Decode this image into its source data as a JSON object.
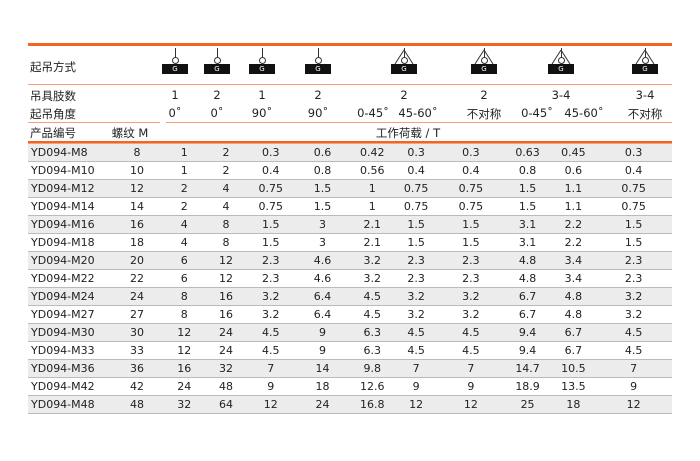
{
  "header": {
    "method_label": "起吊方式",
    "legs_label": "吊具肢数",
    "angle_label": "起吊角度",
    "product_label": "产品编号",
    "thread_label": "螺纹 M",
    "load_label": "工作荷载 / T",
    "icon_letter": "G",
    "legs": [
      "1",
      "2",
      "1",
      "2",
      "2",
      "2",
      "3-4",
      "3-4"
    ],
    "angles": [
      "0˚",
      "0˚",
      "90˚",
      "90˚",
      "0-45˚",
      "45-60˚",
      "不对称",
      "0-45˚",
      "45-60˚",
      "不对称"
    ]
  },
  "accent_color": "#f26522",
  "rows": [
    [
      "YD094-M8",
      "8",
      "1",
      "2",
      "0.3",
      "0.6",
      "0.42",
      "0.3",
      "0.3",
      "0.63",
      "0.45",
      "0.3"
    ],
    [
      "YD094-M10",
      "10",
      "1",
      "2",
      "0.4",
      "0.8",
      "0.56",
      "0.4",
      "0.4",
      "0.8",
      "0.6",
      "0.4"
    ],
    [
      "YD094-M12",
      "12",
      "2",
      "4",
      "0.75",
      "1.5",
      "1",
      "0.75",
      "0.75",
      "1.5",
      "1.1",
      "0.75"
    ],
    [
      "YD094-M14",
      "14",
      "2",
      "4",
      "0.75",
      "1.5",
      "1",
      "0.75",
      "0.75",
      "1.5",
      "1.1",
      "0.75"
    ],
    [
      "YD094-M16",
      "16",
      "4",
      "8",
      "1.5",
      "3",
      "2.1",
      "1.5",
      "1.5",
      "3.1",
      "2.2",
      "1.5"
    ],
    [
      "YD094-M18",
      "18",
      "4",
      "8",
      "1.5",
      "3",
      "2.1",
      "1.5",
      "1.5",
      "3.1",
      "2.2",
      "1.5"
    ],
    [
      "YD094-M20",
      "20",
      "6",
      "12",
      "2.3",
      "4.6",
      "3.2",
      "2.3",
      "2.3",
      "4.8",
      "3.4",
      "2.3"
    ],
    [
      "YD094-M22",
      "22",
      "6",
      "12",
      "2.3",
      "4.6",
      "3.2",
      "2.3",
      "2.3",
      "4.8",
      "3.4",
      "2.3"
    ],
    [
      "YD094-M24",
      "24",
      "8",
      "16",
      "3.2",
      "6.4",
      "4.5",
      "3.2",
      "3.2",
      "6.7",
      "4.8",
      "3.2"
    ],
    [
      "YD094-M27",
      "27",
      "8",
      "16",
      "3.2",
      "6.4",
      "4.5",
      "3.2",
      "3.2",
      "6.7",
      "4.8",
      "3.2"
    ],
    [
      "YD094-M30",
      "30",
      "12",
      "24",
      "4.5",
      "9",
      "6.3",
      "4.5",
      "4.5",
      "9.4",
      "6.7",
      "4.5"
    ],
    [
      "YD094-M33",
      "33",
      "12",
      "24",
      "4.5",
      "9",
      "6.3",
      "4.5",
      "4.5",
      "9.4",
      "6.7",
      "4.5"
    ],
    [
      "YD094-M36",
      "36",
      "16",
      "32",
      "7",
      "14",
      "9.8",
      "7",
      "7",
      "14.7",
      "10.5",
      "7"
    ],
    [
      "YD094-M42",
      "42",
      "24",
      "48",
      "9",
      "18",
      "12.6",
      "9",
      "9",
      "18.9",
      "13.5",
      "9"
    ],
    [
      "YD094-M48",
      "48",
      "32",
      "64",
      "12",
      "24",
      "16.8",
      "12",
      "12",
      "25",
      "18",
      "12"
    ]
  ]
}
